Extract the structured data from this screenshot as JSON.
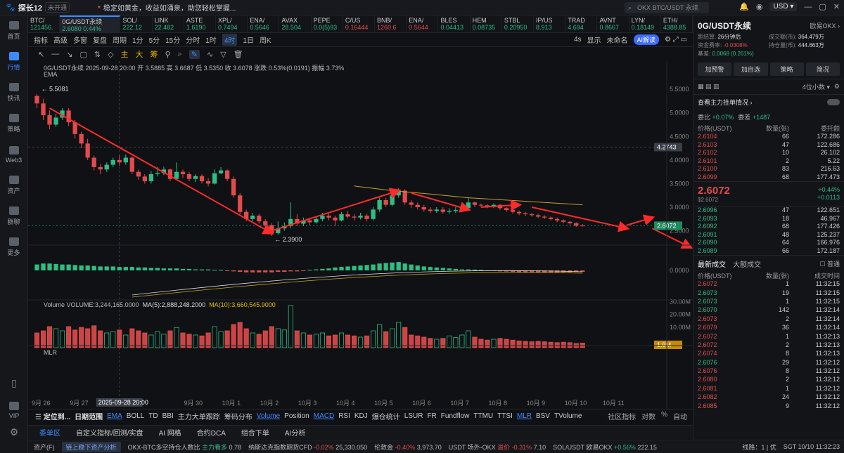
{
  "titlebar": {
    "app": "探长12",
    "badge": "未开通",
    "notice": "稳定如黄金，收益如涌泉，助您轻松掌握...",
    "notice_mark": "*",
    "search_placeholder": "OKX BTC/USDT 永续",
    "currency": "USD"
  },
  "sidebar": [
    {
      "label": "首页",
      "icon": "home-icon"
    },
    {
      "label": "行情",
      "icon": "chart-bars-icon",
      "active": true
    },
    {
      "label": "快讯",
      "icon": "news-icon"
    },
    {
      "label": "策略",
      "icon": "robot-icon"
    },
    {
      "label": "Web3",
      "icon": "web3-icon"
    },
    {
      "label": "资产",
      "icon": "wallet-icon"
    },
    {
      "label": "群聊",
      "icon": "chat-icon"
    },
    {
      "label": "更多",
      "icon": "grid-icon"
    },
    {
      "label": "VIP",
      "icon": "vip-icon"
    }
  ],
  "tickers": [
    {
      "name": "BTC/",
      "price": "121456.",
      "dir": "g"
    },
    {
      "name": "0G/USDT永续",
      "price": "2.6080 0.44%",
      "dir": "g",
      "active": true
    },
    {
      "name": "SOL/",
      "price": "222.12",
      "dir": "g"
    },
    {
      "name": "LINK",
      "price": "22.482",
      "dir": "g"
    },
    {
      "name": "ASTE",
      "price": "1.6190",
      "dir": "g"
    },
    {
      "name": "XPL/",
      "price": "0.7494",
      "dir": "g"
    },
    {
      "name": "ENA/",
      "price": "0.5646",
      "dir": "g"
    },
    {
      "name": "AVAX",
      "price": "28.504",
      "dir": "g"
    },
    {
      "name": "PEPE",
      "price": "0.0(5)93",
      "dir": "g"
    },
    {
      "name": "C/US",
      "price": "0.16444",
      "dir": "r"
    },
    {
      "name": "BNB/",
      "price": "1260.6",
      "dir": "r"
    },
    {
      "name": "ENA/",
      "price": "0.5644",
      "dir": "r"
    },
    {
      "name": "BLES",
      "price": "0.04413",
      "dir": "g"
    },
    {
      "name": "HEM",
      "price": "0.08735",
      "dir": "g"
    },
    {
      "name": "STBL",
      "price": "0.20950",
      "dir": "g"
    },
    {
      "name": "IP/US",
      "price": "8.913",
      "dir": "g"
    },
    {
      "name": "TRAD",
      "price": "4.694",
      "dir": "g"
    },
    {
      "name": "AVNT",
      "price": "0.8667",
      "dir": "g"
    },
    {
      "name": "LYN/",
      "price": "0.18149",
      "dir": "g"
    },
    {
      "name": "ETH/",
      "price": "4388.85",
      "dir": "g"
    }
  ],
  "toolbar": {
    "items": [
      "指标",
      "高级",
      "多窗",
      "复盘",
      "周期",
      "1分",
      "5分",
      "15分",
      "分时",
      "1时",
      "4时",
      "1日",
      "周K"
    ],
    "selected": "4时",
    "right": [
      "4s",
      "显示",
      "未命名"
    ],
    "ai": "AI解读"
  },
  "drawbar": {
    "items": [
      "↖",
      "—",
      "↘",
      "▢",
      "⇅",
      "◇",
      "主",
      "大",
      "筹",
      "⚲",
      "⌕",
      "✎",
      "∿",
      "▽",
      "🗑"
    ]
  },
  "chart": {
    "symbol_line": "0G/USDT永续  2025-09-28 20:00  开 3.5885  高 3.6687  低 3.5350  收 3.6078  涨跌 0.53%(0.0191)  振幅 3.73%",
    "ema_label": "EMA",
    "high_label": "5.5081",
    "low_label": "2.3900",
    "price_tag": "4.2743",
    "current_tag": "2.6072",
    "volume_line": {
      "label": "Volume VOLUME:3,244,165.0000",
      "ma5": "MA(5):2,888,248.2000",
      "ma10": "MA(10):3,660,545.9000"
    },
    "mlr_label": "MLR",
    "vol_tag": "1.9M",
    "crosshair_date": "2025-09-28 20:00",
    "colors": {
      "up": "#2ebd85",
      "down": "#e14b4b",
      "arrow": "#ff2a2a",
      "ma": "#c9a227"
    }
  },
  "chart_data": {
    "type": "candlestick",
    "price_ticks": [
      "5.5000",
      "5.0000",
      "4.5000",
      "4.0000",
      "3.5000",
      "3.0000",
      "2.5000"
    ],
    "macd_ticks": [
      "0.0000"
    ],
    "volume_ticks": [
      "30.00M",
      "20.00M",
      "10.00M"
    ],
    "date_ticks": [
      "9月 26",
      "9月 27",
      "9月 28",
      "9月 30",
      "10月 1",
      "10月 2",
      "10月 3",
      "10月 4",
      "10月 5",
      "10月 6",
      "10月 7",
      "10月 8",
      "10月 9",
      "10月 10",
      "10月 11"
    ],
    "date_tick_values": [
      0.5,
      6.5,
      12.5,
      24.5,
      30.5,
      36.5,
      42.5,
      48.5,
      54.5,
      60.5,
      66.5,
      72.5,
      78.5,
      84.5,
      90.5
    ],
    "price_range": [
      2.3,
      5.8
    ],
    "candles": [
      [
        5.36,
        5.2,
        5.4,
        5.1
      ],
      [
        5.2,
        4.95,
        5.3,
        4.85
      ],
      [
        4.95,
        4.75,
        5.05,
        4.65
      ],
      [
        4.75,
        4.9,
        4.98,
        4.7
      ],
      [
        4.9,
        5.05,
        5.1,
        4.85
      ],
      [
        5.05,
        4.8,
        5.1,
        4.72
      ],
      [
        4.8,
        4.55,
        4.85,
        4.45
      ],
      [
        4.55,
        4.35,
        4.6,
        4.25
      ],
      [
        4.35,
        4.05,
        4.45,
        4.0
      ],
      [
        4.05,
        3.85,
        4.1,
        3.78
      ],
      [
        3.85,
        3.8,
        3.92,
        3.7
      ],
      [
        3.8,
        3.9,
        3.95,
        3.75
      ],
      [
        3.9,
        4.0,
        4.05,
        3.85
      ],
      [
        4.0,
        3.95,
        4.1,
        3.88
      ],
      [
        3.95,
        4.05,
        4.12,
        3.9
      ],
      [
        4.05,
        3.75,
        4.08,
        3.7
      ],
      [
        3.75,
        3.65,
        3.8,
        3.58
      ],
      [
        3.65,
        3.55,
        3.7,
        3.5
      ],
      [
        3.55,
        3.7,
        3.76,
        3.5
      ],
      [
        3.7,
        3.72,
        3.85,
        3.65
      ],
      [
        3.72,
        3.8,
        3.86,
        3.68
      ],
      [
        3.8,
        3.6,
        3.82,
        3.55
      ],
      [
        3.6,
        3.75,
        3.95,
        3.58
      ],
      [
        3.75,
        3.7,
        3.8,
        3.62
      ],
      [
        3.7,
        3.6,
        3.75,
        3.55
      ],
      [
        3.6,
        3.66,
        3.7,
        3.53
      ],
      [
        3.66,
        3.55,
        3.7,
        3.5
      ],
      [
        3.55,
        3.5,
        3.62,
        3.44
      ],
      [
        3.5,
        3.72,
        3.8,
        3.48
      ],
      [
        3.72,
        3.78,
        3.85,
        3.7
      ],
      [
        3.78,
        3.6,
        3.8,
        3.55
      ],
      [
        3.6,
        3.25,
        3.65,
        3.2
      ],
      [
        3.25,
        2.9,
        3.3,
        2.85
      ],
      [
        2.9,
        2.75,
        2.95,
        2.7
      ],
      [
        2.75,
        2.82,
        2.88,
        2.7
      ],
      [
        2.82,
        2.7,
        2.86,
        2.65
      ],
      [
        2.7,
        2.62,
        2.75,
        2.55
      ],
      [
        2.62,
        2.45,
        2.66,
        2.39
      ],
      [
        2.45,
        2.55,
        2.7,
        2.42
      ],
      [
        2.55,
        2.6,
        2.68,
        2.5
      ],
      [
        2.6,
        2.75,
        3.1,
        2.55
      ],
      [
        2.75,
        2.65,
        2.85,
        2.6
      ],
      [
        2.65,
        2.72,
        2.78,
        2.6
      ],
      [
        2.72,
        2.68,
        2.78,
        2.62
      ],
      [
        2.68,
        2.75,
        2.8,
        2.65
      ],
      [
        2.75,
        2.82,
        2.88,
        2.7
      ],
      [
        2.82,
        2.78,
        2.86,
        2.72
      ],
      [
        2.78,
        2.72,
        2.82,
        2.6
      ],
      [
        2.72,
        2.85,
        2.9,
        2.7
      ],
      [
        2.85,
        2.8,
        2.92,
        2.76
      ],
      [
        2.8,
        2.78,
        2.85,
        2.72
      ],
      [
        2.78,
        2.82,
        2.88,
        2.74
      ],
      [
        2.82,
        2.75,
        2.86,
        2.7
      ],
      [
        2.75,
        2.95,
        3.0,
        2.72
      ],
      [
        2.95,
        3.15,
        3.2,
        2.9
      ],
      [
        3.15,
        3.05,
        3.2,
        3.0
      ],
      [
        3.05,
        3.25,
        3.3,
        3.02
      ],
      [
        3.25,
        3.35,
        3.4,
        3.2
      ],
      [
        3.35,
        3.1,
        3.38,
        3.05
      ],
      [
        3.1,
        3.05,
        3.15,
        2.98
      ],
      [
        3.05,
        3.0,
        3.1,
        2.95
      ],
      [
        3.0,
        2.95,
        3.05,
        2.9
      ],
      [
        2.95,
        2.92,
        3.0,
        2.87
      ],
      [
        2.92,
        2.95,
        3.0,
        2.88
      ],
      [
        2.95,
        2.9,
        3.0,
        2.86
      ],
      [
        2.9,
        2.92,
        2.98,
        2.86
      ],
      [
        2.92,
        2.94,
        3.0,
        2.88
      ],
      [
        2.94,
        2.98,
        3.05,
        2.9
      ],
      [
        2.98,
        3.1,
        3.2,
        2.95
      ],
      [
        3.1,
        3.05,
        3.12,
        3.0
      ],
      [
        3.05,
        3.04,
        3.08,
        3.0
      ],
      [
        3.04,
        3.02,
        3.06,
        2.98
      ],
      [
        3.02,
        3.05,
        3.08,
        2.98
      ],
      [
        3.05,
        2.98,
        3.07,
        2.94
      ],
      [
        2.98,
        2.94,
        3.0,
        2.9
      ],
      [
        2.94,
        2.9,
        2.96,
        2.86
      ],
      [
        2.9,
        2.87,
        2.93,
        2.83
      ],
      [
        2.87,
        2.85,
        2.9,
        2.81
      ],
      [
        2.85,
        2.83,
        2.88,
        2.8
      ],
      [
        2.83,
        2.8,
        2.86,
        2.77
      ],
      [
        2.8,
        2.78,
        2.83,
        2.75
      ],
      [
        2.78,
        2.75,
        2.8,
        2.72
      ],
      [
        2.75,
        2.72,
        2.78,
        2.68
      ],
      [
        2.72,
        2.69,
        2.74,
        2.66
      ],
      [
        2.69,
        2.66,
        2.71,
        2.63
      ],
      [
        2.66,
        2.61,
        2.68,
        2.58
      ],
      [
        2.61,
        2.607,
        2.64,
        2.59
      ]
    ],
    "ma_line": [
      [
        50,
        3.45
      ],
      [
        56,
        3.35
      ],
      [
        62,
        3.28
      ],
      [
        68,
        3.2
      ],
      [
        74,
        3.15
      ],
      [
        80,
        3.1
      ],
      [
        86,
        3.05
      ]
    ],
    "volume_rel": [
      0.35,
      0.4,
      0.5,
      0.45,
      0.4,
      0.5,
      0.42,
      0.48,
      0.45,
      0.52,
      0.4,
      0.35,
      0.38,
      0.42,
      0.3,
      0.45,
      0.4,
      0.35,
      0.3,
      0.38,
      0.32,
      0.4,
      0.48,
      0.35,
      0.32,
      0.3,
      0.28,
      0.35,
      0.5,
      0.38,
      0.4,
      0.55,
      0.6,
      0.45,
      0.35,
      0.32,
      0.4,
      0.5,
      0.45,
      0.42,
      1.0,
      0.4,
      0.35,
      0.3,
      0.32,
      0.35,
      0.28,
      0.3,
      0.35,
      0.3,
      0.28,
      0.25,
      0.28,
      0.4,
      0.55,
      0.38,
      0.45,
      0.6,
      0.48,
      0.3,
      0.28,
      0.25,
      0.22,
      0.2,
      0.22,
      0.28,
      0.24,
      0.3,
      0.4,
      0.25,
      0.2,
      0.18,
      0.2,
      0.22,
      0.2,
      0.18,
      0.16,
      0.15,
      0.14,
      0.15,
      0.14,
      0.13,
      0.12,
      0.13,
      0.12,
      0.1,
      0.11
    ],
    "macd_rel": [
      0.6,
      0.7,
      0.7,
      0.65,
      0.6,
      0.6,
      0.55,
      0.5,
      0.5,
      0.45,
      0.4,
      0.4,
      0.4,
      0.35,
      0.35,
      0.35,
      0.3,
      0.3,
      0.25,
      0.25,
      0.2,
      0.2,
      0.2,
      0.15,
      0.15,
      0.1,
      0.1,
      0.1,
      0.05,
      0.05,
      -0.05,
      -0.1,
      -0.15,
      -0.2,
      -0.2,
      -0.2,
      -0.2,
      -0.2,
      -0.15,
      -0.15,
      -0.1,
      -0.1,
      -0.05,
      0.05,
      0.1,
      0.15,
      0.2,
      0.3,
      0.35,
      0.4,
      0.45,
      0.5,
      0.55,
      0.6,
      0.7,
      0.75,
      0.8,
      0.85,
      0.7,
      0.6,
      0.5,
      0.4,
      0.35,
      0.3,
      0.25,
      0.2,
      0.15,
      0.1,
      0.1,
      0.08,
      0.05,
      0.0,
      -0.05,
      -0.1,
      -0.12,
      -0.15,
      -0.18,
      -0.2,
      -0.2,
      -0.22,
      -0.22,
      -0.2,
      -0.2,
      -0.18,
      -0.18,
      -0.15,
      -0.15
    ],
    "arrows": [
      {
        "from": [
          2,
          5.1
        ],
        "to": [
          37,
          2.45
        ]
      },
      {
        "from": [
          37,
          2.5
        ],
        "to": [
          57,
          3.35
        ]
      },
      {
        "from": [
          59,
          3.3
        ],
        "to": [
          68,
          2.95
        ]
      },
      {
        "from": [
          70,
          3.0
        ],
        "to": [
          76,
          3.05
        ]
      },
      {
        "from": [
          78,
          3.0
        ],
        "to": [
          93,
          2.55
        ]
      },
      {
        "from": [
          93,
          2.62
        ],
        "to": [
          97,
          2.78
        ]
      },
      {
        "from": [
          97,
          2.55
        ],
        "to": [
          103,
          2.15
        ]
      }
    ]
  },
  "bottom_tabs": {
    "locate": "定位到...",
    "range": "日期范围",
    "indicators": [
      "EMA",
      "BOLL",
      "TD",
      "BBI",
      "主力大单跟踪",
      "筹码分布",
      "Volume",
      "Position",
      "MACD",
      "RSI",
      "KDJ",
      "爆仓统计",
      "LSUR",
      "FR",
      "Fundflow",
      "TTMU",
      "TTSI",
      "MLR",
      "BSV",
      "TVolume"
    ],
    "on": [
      "EMA",
      "Volume",
      "MACD",
      "MLR"
    ],
    "right": [
      "社区指标",
      "对数",
      "%",
      "自动"
    ]
  },
  "panel_tabs": [
    "委单区",
    "自定义指标/回测/实盘",
    "AI 网格",
    "合约DCA",
    "组合下单",
    "AI分析"
  ],
  "statusbar": {
    "asset": "资产(F)",
    "btn": "链上稳下资产分析",
    "items": [
      {
        "label": "OKX-BTC多空持仓人数比",
        "tag": "主力看多",
        "val": "0.78"
      },
      {
        "label": "纳斯达克指数期货CFD",
        "chg": "-0.02%",
        "val": "25,330.050"
      },
      {
        "label": "伦敦金",
        "chg": "-0.40%",
        "val": "3,973.70"
      },
      {
        "label": "USDT 场外-OKX",
        "tag": "溢价",
        "chg": "-0.31%",
        "val": "7.10"
      },
      {
        "label": "SOL/USDT 欧易OKX",
        "chg": "+0.56%",
        "val": "222.15"
      }
    ],
    "line": "线路：1 | 优",
    "time": "SGT 10/10 11:32:23"
  },
  "right_panel": {
    "symbol": "0G/USDT永续",
    "exchange": "欧易OKX",
    "meta": [
      [
        "距结算",
        "26分钟后",
        ""
      ],
      [
        "成交额(币)",
        "364.479万",
        ""
      ],
      [
        "资金费率",
        "-0.0308%",
        "r"
      ],
      [
        "持仓量(币)",
        "444.663万",
        ""
      ],
      [
        "基差",
        "0.0068 (0.261%)",
        "g"
      ]
    ],
    "buttons": [
      "加预警",
      "加自选",
      "策略",
      "简况"
    ],
    "decimals": "4位小数",
    "whale": "查看主力挂单情况",
    "ratios": [
      {
        "label": "委比",
        "val": "+0.07%"
      },
      {
        "label": "委差",
        "val": "+1487"
      }
    ],
    "ob_header": [
      "价格(USDT)",
      "数量(张)",
      "委托额"
    ],
    "asks": [
      [
        "2.6104",
        "66",
        "172.286"
      ],
      [
        "2.6103",
        "47",
        "122.686"
      ],
      [
        "2.6102",
        "10",
        "26.102"
      ],
      [
        "2.6101",
        "2",
        "5.22"
      ],
      [
        "2.6100",
        "83",
        "216.63"
      ],
      [
        "2.6099",
        "68",
        "177.473"
      ]
    ],
    "mid_price": "2.6072",
    "mid_sub": "$2.6072",
    "mid_chg": "+0.44%",
    "mid_diff": "+0.0113",
    "bids": [
      [
        "2.6096",
        "47",
        "122.651"
      ],
      [
        "2.6093",
        "18",
        "46.967"
      ],
      [
        "2.6092",
        "68",
        "177.426"
      ],
      [
        "2.6091",
        "48",
        "125.237"
      ],
      [
        "2.6090",
        "64",
        "166.976"
      ],
      [
        "2.6089",
        "66",
        "172.187"
      ]
    ],
    "trade_tabs": [
      "最新成交",
      "大额成交"
    ],
    "trade_check": "普通",
    "trade_header": [
      "价格(USDT)",
      "数量(张)",
      "成交时间"
    ],
    "trades": [
      [
        "2.6072",
        "1",
        "11:32:15",
        "r"
      ],
      [
        "2.6073",
        "19",
        "11:32:15",
        "g"
      ],
      [
        "2.6073",
        "1",
        "11:32:15",
        "g"
      ],
      [
        "2.6070",
        "142",
        "11:32:14",
        "g"
      ],
      [
        "2.6073",
        "2",
        "11:32:14",
        "r"
      ],
      [
        "2.6079",
        "36",
        "11:32:14",
        "r"
      ],
      [
        "2.6072",
        "1",
        "11:32:13",
        "r"
      ],
      [
        "2.6072",
        "2",
        "11:32:13",
        "r"
      ],
      [
        "2.6074",
        "8",
        "11:32:13",
        "r"
      ],
      [
        "2.6076",
        "29",
        "11:32:12",
        "g"
      ],
      [
        "2.6076",
        "8",
        "11:32:12",
        "r"
      ],
      [
        "2.6080",
        "2",
        "11:32:12",
        "r"
      ],
      [
        "2.6081",
        "1",
        "11:32:12",
        "r"
      ],
      [
        "2.6082",
        "24",
        "11:32:12",
        "r"
      ],
      [
        "2.6085",
        "9",
        "11:32:12",
        "r"
      ]
    ]
  }
}
